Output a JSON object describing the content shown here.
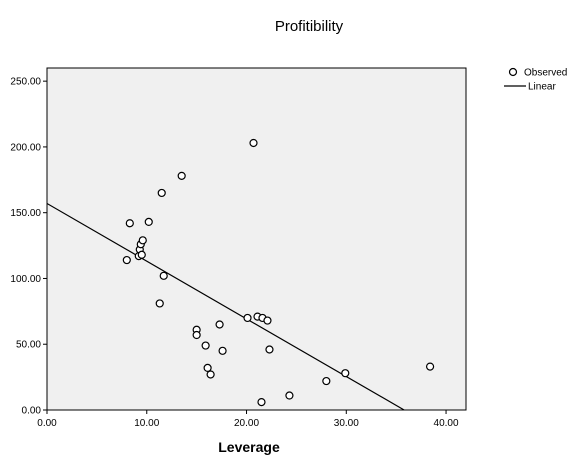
{
  "chart_data": {
    "type": "scatter",
    "title": "Profitibility",
    "xlabel": "Leverage",
    "ylabel": "",
    "xlim": [
      0,
      42
    ],
    "ylim": [
      0,
      260
    ],
    "xticks": [
      "0.00",
      "10.00",
      "20.00",
      "30.00",
      "40.00"
    ],
    "xtick_values": [
      0,
      10,
      20,
      30,
      40
    ],
    "yticks": [
      "0.00",
      "50.00",
      "100.00",
      "150.00",
      "200.00",
      "250.00"
    ],
    "ytick_values": [
      0,
      50,
      100,
      150,
      200,
      250
    ],
    "grid": false,
    "legend_position": "top-right",
    "colors": {
      "plot_background": "#f0f0f0",
      "marker_stroke": "#000000",
      "marker_fill": "#ffffff",
      "line": "#000000"
    },
    "legend": [
      {
        "label": "Observed",
        "marker": "open-circle"
      },
      {
        "label": "Linear",
        "marker": "line"
      }
    ],
    "series": [
      {
        "name": "Observed",
        "kind": "points",
        "points": [
          [
            8.0,
            114
          ],
          [
            8.3,
            142
          ],
          [
            9.2,
            117
          ],
          [
            9.3,
            122
          ],
          [
            9.4,
            126
          ],
          [
            9.5,
            118
          ],
          [
            9.6,
            129
          ],
          [
            10.2,
            143
          ],
          [
            11.3,
            81
          ],
          [
            11.5,
            165
          ],
          [
            11.7,
            102
          ],
          [
            13.5,
            178
          ],
          [
            15.0,
            61
          ],
          [
            15.0,
            57
          ],
          [
            15.9,
            49
          ],
          [
            16.1,
            32
          ],
          [
            16.4,
            27
          ],
          [
            17.3,
            65
          ],
          [
            17.6,
            45
          ],
          [
            20.1,
            70
          ],
          [
            20.7,
            203
          ],
          [
            21.1,
            71
          ],
          [
            21.5,
            6
          ],
          [
            21.6,
            70
          ],
          [
            22.1,
            68
          ],
          [
            22.3,
            46
          ],
          [
            24.3,
            11
          ],
          [
            28.0,
            22
          ],
          [
            29.9,
            28
          ],
          [
            38.4,
            33
          ]
        ]
      },
      {
        "name": "Linear",
        "kind": "line",
        "points": [
          [
            0,
            157
          ],
          [
            35.8,
            0
          ]
        ]
      }
    ]
  }
}
